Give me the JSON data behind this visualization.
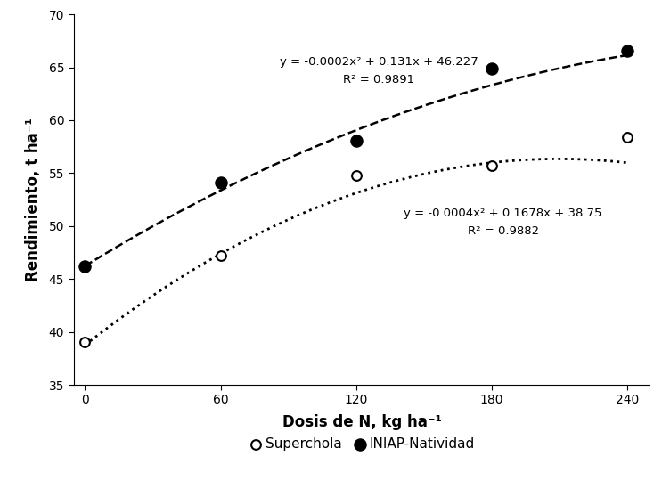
{
  "superchola_x": [
    0,
    60,
    120,
    180,
    240
  ],
  "superchola_y": [
    39.0,
    47.2,
    54.8,
    55.7,
    58.4
  ],
  "iniap_x": [
    0,
    60,
    120,
    180,
    240
  ],
  "iniap_y": [
    46.2,
    54.1,
    58.1,
    64.9,
    66.6
  ],
  "superchola_eq": "y = -0.0004x² + 0.1678x + 38.75",
  "superchola_r2": "R² = 0.9882",
  "iniap_eq": "y = -0.0002x² + 0.131x + 46.227",
  "iniap_r2": "R² = 0.9891",
  "xlabel": "Dosis de N, kg ha⁻¹",
  "ylabel": "Rendimiento, t ha⁻¹",
  "xlim": [
    -5,
    250
  ],
  "ylim": [
    35,
    70
  ],
  "xticks": [
    0,
    60,
    120,
    180,
    240
  ],
  "yticks": [
    35,
    40,
    45,
    50,
    55,
    60,
    65,
    70
  ],
  "legend_labels": [
    "Superchola",
    "INIAP-Natividad"
  ],
  "iniap_ann_x": 130,
  "iniap_ann_y1": 65.5,
  "iniap_ann_y2": 63.8,
  "super_ann_x": 185,
  "super_ann_y1": 51.2,
  "super_ann_y2": 49.5,
  "ann_fontsize": 9.5,
  "tick_fontsize": 10,
  "label_fontsize": 12,
  "legend_fontsize": 11
}
